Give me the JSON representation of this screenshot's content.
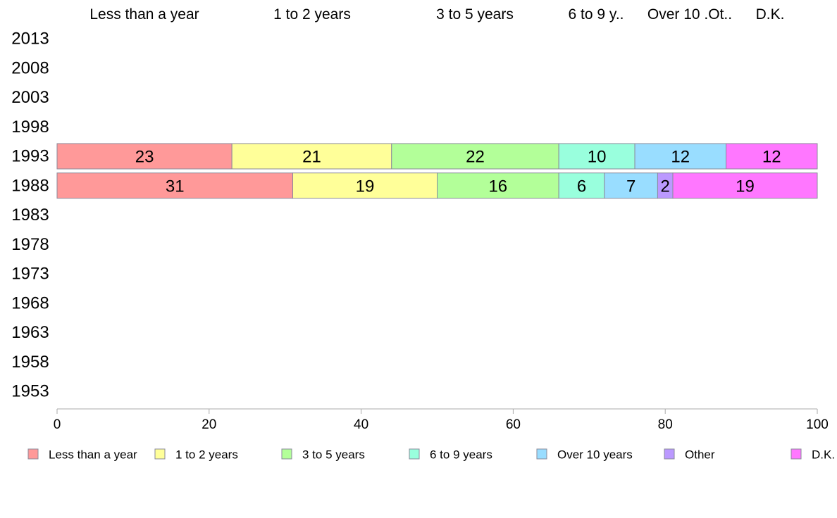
{
  "chart_data": {
    "type": "bar",
    "orientation": "horizontal",
    "stacked": true,
    "title": "",
    "xlabel": "",
    "ylabel": "",
    "xlim": [
      0,
      100
    ],
    "x_ticks": [
      0,
      20,
      40,
      60,
      80,
      100
    ],
    "years": [
      "2013",
      "2008",
      "2003",
      "1998",
      "1993",
      "1988",
      "1983",
      "1978",
      "1973",
      "1968",
      "1963",
      "1958",
      "1953"
    ],
    "top_headers": [
      "Less than a year",
      "1 to 2 years",
      "3 to 5 years",
      "6 to 9 y..",
      "Over 10 .Ot..",
      "D.K."
    ],
    "legend_position": "bottom",
    "series": [
      {
        "name": "Less than a year",
        "color": "#ff9999"
      },
      {
        "name": "1 to 2 years",
        "color": "#ffff99"
      },
      {
        "name": "3 to 5 years",
        "color": "#b3ff99"
      },
      {
        "name": "6 to 9 years",
        "color": "#99ffdd"
      },
      {
        "name": "Over 10 years",
        "color": "#99ddff"
      },
      {
        "name": "Other",
        "color": "#bb99ff"
      },
      {
        "name": "D.K.",
        "color": "#ff77ff"
      }
    ],
    "rows": [
      {
        "year": "1993",
        "values": [
          23,
          21,
          22,
          10,
          12,
          0,
          12
        ]
      },
      {
        "year": "1988",
        "values": [
          31,
          19,
          16,
          6,
          7,
          2,
          19
        ]
      }
    ],
    "grid": false
  }
}
